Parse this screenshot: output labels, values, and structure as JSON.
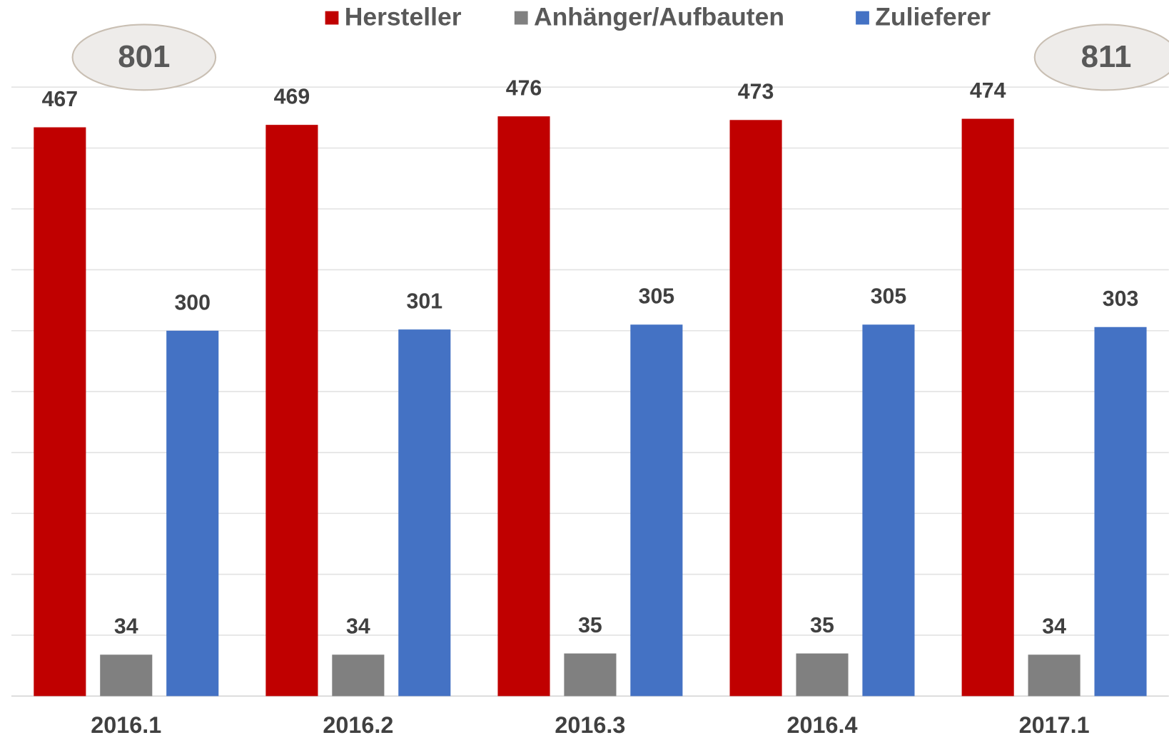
{
  "chart_data": {
    "type": "bar",
    "categories": [
      "2016.1",
      "2016.2",
      "2016.3",
      "2016.4",
      "2017.1"
    ],
    "series": [
      {
        "name": "Hersteller",
        "color": "#c00000",
        "values": [
          467,
          469,
          476,
          473,
          474
        ]
      },
      {
        "name": "Anhänger/Aufbauten",
        "color": "#808080",
        "values": [
          34,
          34,
          35,
          35,
          34
        ]
      },
      {
        "name": "Zulieferer",
        "color": "#4472c4",
        "values": [
          300,
          301,
          305,
          305,
          303
        ]
      }
    ],
    "annotations": [
      "801",
      "811"
    ],
    "ylim": [
      0,
      500
    ],
    "yticks": [
      0,
      50,
      100,
      150,
      200,
      250,
      300,
      350,
      400,
      450,
      500
    ],
    "grid": true,
    "legend": "top"
  }
}
